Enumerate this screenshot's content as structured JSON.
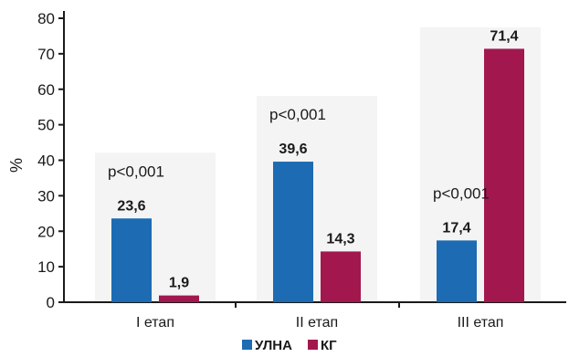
{
  "chart_data": {
    "type": "bar",
    "ylabel": "%",
    "ylim": [
      0,
      80
    ],
    "yticks": [
      "0",
      "10",
      "20",
      "30",
      "40",
      "50",
      "60",
      "70",
      "80"
    ],
    "categories": [
      "I етап",
      "II етап",
      "III етап"
    ],
    "series": [
      {
        "name": "УЛНА",
        "color": "#1c6bb3",
        "values": [
          23.6,
          39.6,
          17.4
        ],
        "labels": [
          "23,6",
          "39,6",
          "17,4"
        ]
      },
      {
        "name": "КГ",
        "color": "#a3174f",
        "values": [
          1.9,
          14.3,
          71.4
        ],
        "labels": [
          "1,9",
          "14,3",
          "71,4"
        ]
      }
    ],
    "annotations": [
      "p<0,001",
      "p<0,001",
      "p<0,001"
    ],
    "legend": "bottom-center",
    "grid": false
  }
}
